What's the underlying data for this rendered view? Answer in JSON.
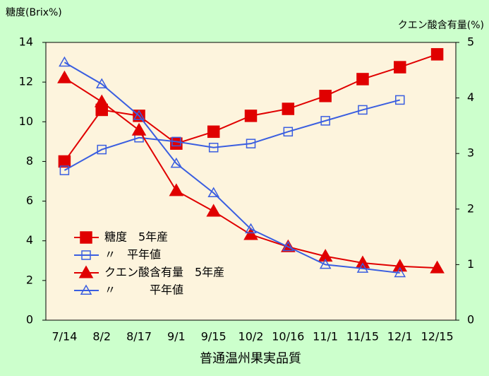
{
  "chart_data": {
    "type": "line",
    "title": "普通温州果実品質",
    "y_label": "糖度(Brix%)",
    "y2_label": "クエン酸含有量(%)",
    "categories": [
      "7/14",
      "8/2",
      "8/17",
      "9/1",
      "9/15",
      "10/2",
      "10/16",
      "11/1",
      "11/15",
      "12/1",
      "12/15"
    ],
    "ylim": [
      0,
      14
    ],
    "yticks": [
      0,
      2,
      4,
      6,
      8,
      10,
      12,
      14
    ],
    "y2lim": [
      0,
      5
    ],
    "y2ticks": [
      0,
      1,
      2,
      3,
      4,
      5
    ],
    "grid": false,
    "series": [
      {
        "name": "糖度　5年産",
        "color": "#e00000",
        "marker": "square-filled",
        "values": [
          8.0,
          10.6,
          10.3,
          8.9,
          9.5,
          10.3,
          10.65,
          11.3,
          12.15,
          12.75,
          13.4
        ]
      },
      {
        "name": "〃　平年値",
        "color": "#3a5ee0",
        "marker": "square-open",
        "values": [
          7.55,
          8.6,
          9.2,
          9.0,
          8.7,
          8.9,
          9.5,
          10.05,
          10.6,
          11.1,
          null
        ]
      },
      {
        "name": "クエン酸含有量　5年産",
        "color": "#e00000",
        "marker": "triangle-filled",
        "axis": "y2",
        "values": [
          4.36,
          3.93,
          3.42,
          2.33,
          1.96,
          1.54,
          1.32,
          1.15,
          1.03,
          0.97,
          0.94
        ]
      },
      {
        "name": "〃　　　平年値",
        "color": "#3a5ee0",
        "marker": "triangle-open",
        "axis": "y2",
        "values": [
          4.64,
          4.25,
          3.68,
          2.82,
          2.29,
          1.64,
          1.32,
          1.0,
          0.93,
          0.85,
          null
        ]
      }
    ]
  }
}
